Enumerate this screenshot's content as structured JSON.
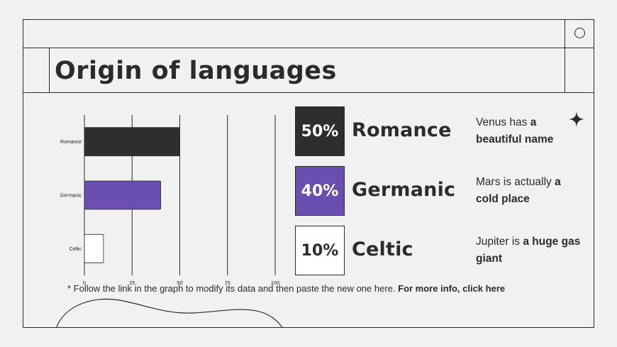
{
  "title": "Origin of languages",
  "colors": {
    "background": "#f1f1f1",
    "line": "#2b2b2b",
    "romance": "#2e2e2e",
    "germanic": "#6a4fb0",
    "celtic": "#ffffff"
  },
  "chart_data": {
    "type": "bar",
    "orientation": "horizontal",
    "categories": [
      "Romance",
      "Germanic",
      "Celtic"
    ],
    "values": [
      50,
      40,
      10
    ],
    "colors": [
      "#2e2e2e",
      "#6a4fb0",
      "#ffffff"
    ],
    "xticks": [
      "0",
      "25",
      "50",
      "75",
      "100"
    ],
    "xlim": [
      0,
      100
    ],
    "grid": "vertical",
    "title": "",
    "xlabel": "",
    "ylabel": ""
  },
  "legend": [
    {
      "percent": "50%",
      "name": "Romance",
      "desc_plain": "Venus has ",
      "desc_bold": "a beautiful name",
      "box_bg": "#2e2e2e",
      "box_fg": "#ffffff"
    },
    {
      "percent": "40%",
      "name": "Germanic",
      "desc_plain": "Mars is actually ",
      "desc_bold": "a cold place",
      "box_bg": "#6a4fb0",
      "box_fg": "#ffffff"
    },
    {
      "percent": "10%",
      "name": "Celtic",
      "desc_plain": "Jupiter is ",
      "desc_bold": "a huge gas giant",
      "box_bg": "#ffffff",
      "box_fg": "#2b2b2b"
    }
  ],
  "footnote": {
    "text": "* Follow the link in the graph to modify its data and then paste the new one here. ",
    "bold": "For more info, click here"
  },
  "icons": {
    "window_button": "circle-icon",
    "decoration": "sparkle-icon"
  }
}
